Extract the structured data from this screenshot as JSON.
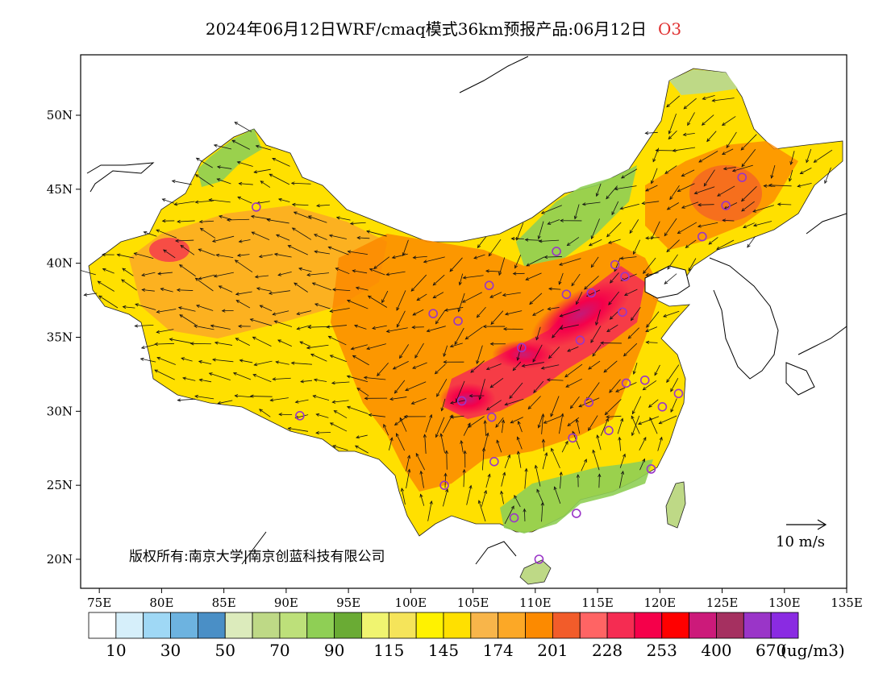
{
  "header": {
    "title": "2024年06月12日WRF/cmaq模式36km预报产品:06月12日",
    "pollutant": "O3"
  },
  "map": {
    "lon_ticks": [
      "75E",
      "80E",
      "85E",
      "90E",
      "95E",
      "100E",
      "105E",
      "110E",
      "115E",
      "120E",
      "125E",
      "130E",
      "135E"
    ],
    "lat_ticks": [
      "50N",
      "45N",
      "40N",
      "35N",
      "30N",
      "25N",
      "20N"
    ],
    "copyright": "版权所有:南京大学|南京创蓝科技有限公司",
    "wind_reference": "10 m/s",
    "city_markers": [
      {
        "lon": 87.6,
        "lat": 43.8
      },
      {
        "lon": 91.1,
        "lat": 29.7
      },
      {
        "lon": 101.8,
        "lat": 36.6
      },
      {
        "lon": 103.8,
        "lat": 36.1
      },
      {
        "lon": 106.3,
        "lat": 38.5
      },
      {
        "lon": 111.7,
        "lat": 40.8
      },
      {
        "lon": 112.5,
        "lat": 37.9
      },
      {
        "lon": 114.5,
        "lat": 38.0
      },
      {
        "lon": 116.4,
        "lat": 39.9
      },
      {
        "lon": 117.2,
        "lat": 39.1
      },
      {
        "lon": 117.0,
        "lat": 36.7
      },
      {
        "lon": 113.6,
        "lat": 34.8
      },
      {
        "lon": 108.9,
        "lat": 34.3
      },
      {
        "lon": 104.1,
        "lat": 30.7
      },
      {
        "lon": 106.5,
        "lat": 29.6
      },
      {
        "lon": 114.3,
        "lat": 30.6
      },
      {
        "lon": 117.3,
        "lat": 31.9
      },
      {
        "lon": 118.8,
        "lat": 32.1
      },
      {
        "lon": 121.5,
        "lat": 31.2
      },
      {
        "lon": 120.2,
        "lat": 30.3
      },
      {
        "lon": 115.9,
        "lat": 28.7
      },
      {
        "lon": 113.0,
        "lat": 28.2
      },
      {
        "lon": 106.7,
        "lat": 26.6
      },
      {
        "lon": 102.7,
        "lat": 25.0
      },
      {
        "lon": 108.3,
        "lat": 22.8
      },
      {
        "lon": 113.3,
        "lat": 23.1
      },
      {
        "lon": 119.3,
        "lat": 26.1
      },
      {
        "lon": 110.3,
        "lat": 20.0
      },
      {
        "lon": 123.4,
        "lat": 41.8
      },
      {
        "lon": 125.3,
        "lat": 43.9
      },
      {
        "lon": 126.6,
        "lat": 45.8
      }
    ]
  },
  "colorbar": {
    "unit": "(ug/m3)",
    "colors": [
      "#ffffff",
      "#d6effa",
      "#9fd8f5",
      "#6db3e0",
      "#4a8fc6",
      "#dcebbc",
      "#bed986",
      "#bde07a",
      "#8fcf55",
      "#6aab34",
      "#f0f470",
      "#f5e45a",
      "#fff200",
      "#ffe000",
      "#f8b54a",
      "#fca826",
      "#fc8a00",
      "#f25c2a",
      "#ff6464",
      "#f52c52",
      "#f5004a",
      "#ff0000",
      "#cc1a7a",
      "#a53060",
      "#9a35c8",
      "#8a2be2"
    ],
    "labels": [
      "10",
      "30",
      "50",
      "70",
      "90",
      "115",
      "145",
      "174",
      "201",
      "228",
      "253",
      "400",
      "670"
    ]
  }
}
